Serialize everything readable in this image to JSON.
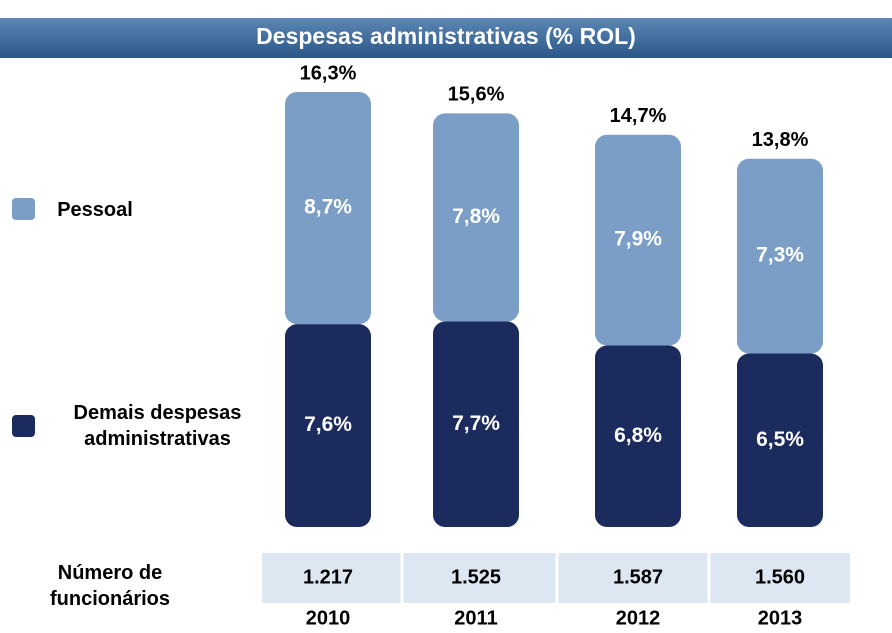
{
  "chart_data": {
    "type": "bar",
    "stacked": true,
    "title": "Despesas administrativas (% ROL)",
    "categories": [
      "2010",
      "2011",
      "2012",
      "2013"
    ],
    "series": [
      {
        "name": "Demais despesas administrativas",
        "color": "#1c2b5e",
        "values": [
          7.6,
          7.7,
          6.8,
          6.5
        ],
        "value_labels": [
          "7,6%",
          "7,7%",
          "6,8%",
          "6,5%"
        ]
      },
      {
        "name": "Pessoal",
        "color": "#7b9ec6",
        "values": [
          8.7,
          7.8,
          7.9,
          7.3
        ],
        "value_labels": [
          "8,7%",
          "7,8%",
          "7,9%",
          "7,3%"
        ]
      }
    ],
    "totals": [
      16.3,
      15.6,
      14.7,
      13.8
    ],
    "total_labels": [
      "16,3%",
      "15,6%",
      "14,7%",
      "13,8%"
    ],
    "employees": {
      "label": "Número de funcionários",
      "values": [
        1217,
        1525,
        1587,
        1560
      ],
      "value_labels": [
        "1.217",
        "1.525",
        "1.587",
        "1.560"
      ]
    }
  }
}
